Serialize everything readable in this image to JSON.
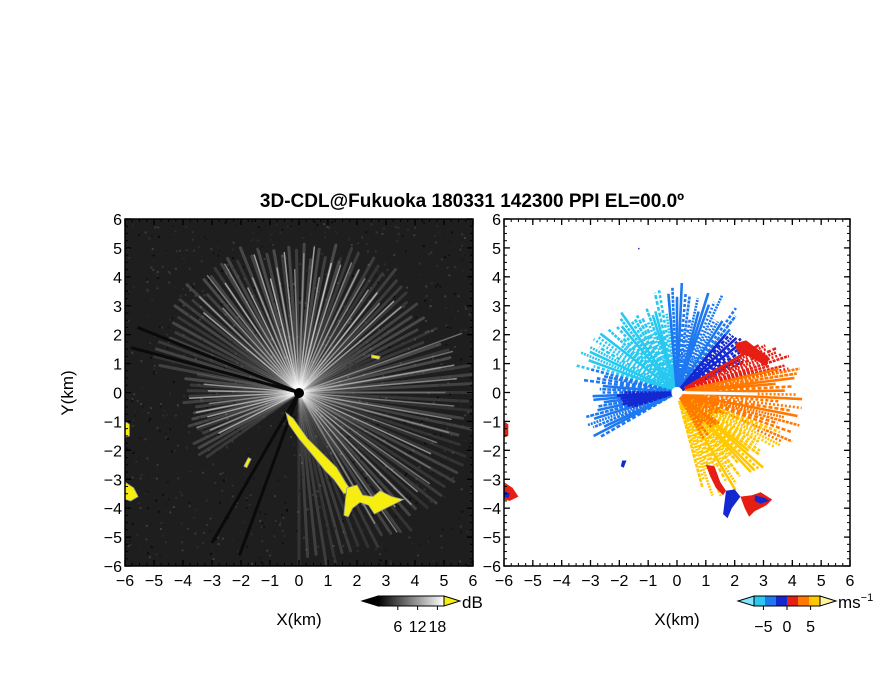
{
  "title": "3D-CDL@Fukuoka 180331 142300 PPI EL=00.0º",
  "chart_data": [
    {
      "type": "heatmap",
      "panel": "snr",
      "xlabel": "X(km)",
      "ylabel": "Y(km)",
      "xlim": [
        -6,
        6
      ],
      "ylim": [
        -6,
        6
      ],
      "xticks": [
        "−6",
        "−5",
        "−4",
        "−3",
        "−2",
        "−1",
        "0",
        "1",
        "2",
        "3",
        "4",
        "5",
        "6"
      ],
      "yticks": [
        "6",
        "5",
        "4",
        "3",
        "2",
        "1",
        "0",
        "−1",
        "−2",
        "−3",
        "−4",
        "−5",
        "−6"
      ],
      "colorbar": {
        "unit": "dB",
        "ticks": [
          "6",
          "12",
          "18"
        ],
        "range": [
          0,
          20
        ]
      },
      "background_color": "#1e1e1e",
      "highlight_color": "#f5ee10"
    },
    {
      "type": "heatmap",
      "panel": "velocity",
      "xlabel": "X(km)",
      "xlim": [
        -6,
        6
      ],
      "ylim": [
        -6,
        6
      ],
      "xticks": [
        "−6",
        "−5",
        "−4",
        "−3",
        "−2",
        "−1",
        "0",
        "1",
        "2",
        "3",
        "4",
        "5",
        "6"
      ],
      "yticks": [
        "6",
        "5",
        "4",
        "3",
        "2",
        "1",
        "0",
        "−1",
        "−2",
        "−3",
        "−4",
        "−5",
        "−6"
      ],
      "colorbar": {
        "unit": "ms",
        "unit_exponent": "−1",
        "ticks": [
          "−5",
          "0",
          "5"
        ],
        "range": [
          -7,
          7
        ]
      },
      "colors": [
        "#28c8f0",
        "#1e78f0",
        "#1428d2",
        "#e61e14",
        "#ff7800",
        "#ffc800"
      ]
    }
  ]
}
